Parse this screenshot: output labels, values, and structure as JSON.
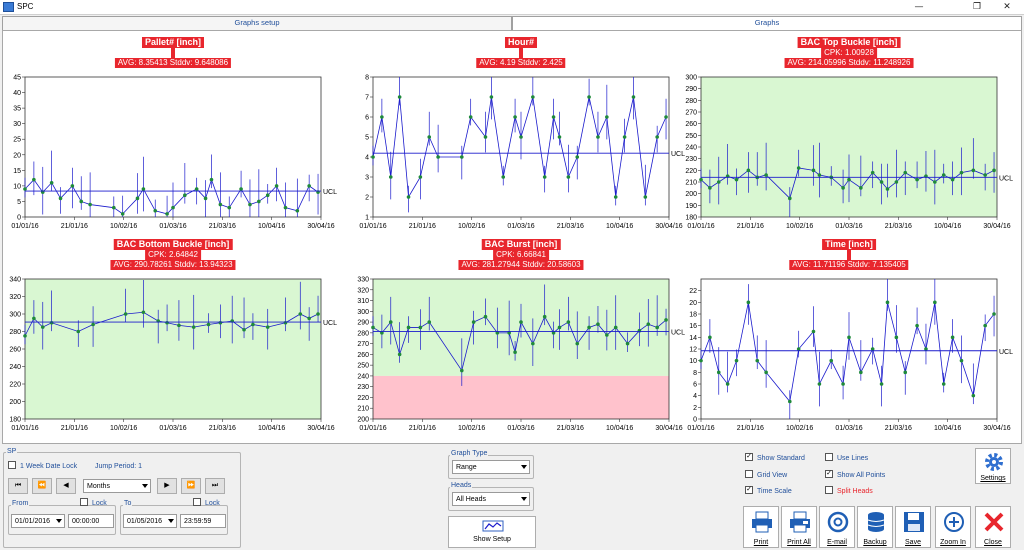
{
  "window": {
    "title": "SPC",
    "minimize": "—",
    "restore": "❐",
    "close": "✕"
  },
  "tabs": [
    {
      "label": "Graphs setup"
    },
    {
      "label": "Graphs"
    }
  ],
  "colors": {
    "title_bg": "#e8262d",
    "series_line": "#1a1acc",
    "point": "#1f8a3a",
    "green_zone": "#d9f7d2",
    "red_zone": "#ffc2cc"
  },
  "charts": [
    {
      "title": "Pallet#  [inch]",
      "cpk": "",
      "stats": "AVG: 8.35413  Stddv: 9.648086"
    },
    {
      "title": "Hour#",
      "cpk": "",
      "stats": "AVG: 4.19  Stddv: 2.425"
    },
    {
      "title": "BAC Top Buckle  [inch]",
      "cpk": "CPK:  1.00928",
      "stats": "AVG: 214.05996  Stddv: 11.248926"
    },
    {
      "title": "BAC Bottom Buckle  [inch]",
      "cpk": "CPK:  2.64842",
      "stats": "AVG: 290.78261  Stddv: 13.94323"
    },
    {
      "title": "BAC Burst  [inch]",
      "cpk": "CPK:  6.66841",
      "stats": "AVG: 281.27944  Stddv: 20.58603"
    },
    {
      "title": "Time  [inch]",
      "cpk": "",
      "stats": "AVG: 11.71196  Stddv: 7.135405"
    }
  ],
  "chart_data": [
    {
      "type": "line",
      "title": "Pallet#  [inch]",
      "x_ticks": [
        "01/01/16",
        "21/01/16",
        "10/02/16",
        "01/03/16",
        "21/03/16",
        "10/04/16",
        "30/04/16"
      ],
      "y_ticks": [
        0,
        5,
        10,
        15,
        20,
        25,
        30,
        35,
        40,
        45
      ],
      "ylim": [
        0,
        45
      ],
      "center_line": 8.35,
      "center_label": "UCL",
      "zones": [],
      "points": [
        [
          0,
          9
        ],
        [
          3,
          12
        ],
        [
          6,
          8
        ],
        [
          9,
          11
        ],
        [
          12,
          6
        ],
        [
          16,
          10
        ],
        [
          19,
          5
        ],
        [
          22,
          4
        ],
        [
          30,
          3
        ],
        [
          33,
          1
        ],
        [
          38,
          6
        ],
        [
          40,
          9
        ],
        [
          44,
          2
        ],
        [
          48,
          1
        ],
        [
          50,
          3
        ],
        [
          54,
          7
        ],
        [
          58,
          9
        ],
        [
          61,
          6
        ],
        [
          63,
          12
        ],
        [
          66,
          4
        ],
        [
          69,
          3
        ],
        [
          73,
          9
        ],
        [
          76,
          4
        ],
        [
          79,
          5
        ],
        [
          82,
          7
        ],
        [
          85,
          10
        ],
        [
          88,
          3
        ],
        [
          92,
          2
        ],
        [
          96,
          10
        ],
        [
          99,
          8
        ]
      ]
    },
    {
      "type": "line",
      "title": "Hour#",
      "x_ticks": [
        "01/01/16",
        "21/01/16",
        "10/02/16",
        "01/03/16",
        "21/03/16",
        "10/04/16",
        "30/04/16"
      ],
      "y_ticks": [
        1,
        2,
        3,
        4,
        5,
        6,
        7,
        8
      ],
      "ylim": [
        1,
        8
      ],
      "center_line": 4.19,
      "center_label": "UCL",
      "zones": [],
      "points": [
        [
          0,
          4
        ],
        [
          3,
          6
        ],
        [
          6,
          3
        ],
        [
          9,
          7
        ],
        [
          12,
          2
        ],
        [
          16,
          3
        ],
        [
          19,
          5
        ],
        [
          22,
          4
        ],
        [
          30,
          4
        ],
        [
          33,
          6
        ],
        [
          38,
          5
        ],
        [
          40,
          7
        ],
        [
          44,
          3
        ],
        [
          48,
          6
        ],
        [
          50,
          5
        ],
        [
          54,
          7
        ],
        [
          58,
          3
        ],
        [
          61,
          6
        ],
        [
          63,
          5
        ],
        [
          66,
          3
        ],
        [
          69,
          4
        ],
        [
          73,
          7
        ],
        [
          76,
          5
        ],
        [
          79,
          6
        ],
        [
          82,
          2
        ],
        [
          85,
          5
        ],
        [
          88,
          7
        ],
        [
          92,
          2
        ],
        [
          96,
          5
        ],
        [
          99,
          6
        ]
      ]
    },
    {
      "type": "line",
      "title": "BAC Top Buckle  [inch]",
      "x_ticks": [
        "01/01/16",
        "21/01/16",
        "10/02/16",
        "01/03/16",
        "21/03/16",
        "10/04/16",
        "30/04/16"
      ],
      "y_ticks": [
        180,
        190,
        200,
        210,
        220,
        230,
        240,
        250,
        260,
        270,
        280,
        290,
        300
      ],
      "ylim": [
        180,
        300
      ],
      "center_line": 214,
      "center_label": "UCL",
      "zones": [
        {
          "from": 180,
          "to": 300,
          "color": "green"
        }
      ],
      "points": [
        [
          0,
          212
        ],
        [
          3,
          205
        ],
        [
          6,
          210
        ],
        [
          9,
          215
        ],
        [
          12,
          212
        ],
        [
          16,
          220
        ],
        [
          19,
          214
        ],
        [
          22,
          216
        ],
        [
          30,
          196
        ],
        [
          33,
          222
        ],
        [
          38,
          220
        ],
        [
          40,
          216
        ],
        [
          44,
          214
        ],
        [
          48,
          205
        ],
        [
          50,
          212
        ],
        [
          54,
          205
        ],
        [
          58,
          218
        ],
        [
          61,
          210
        ],
        [
          63,
          204
        ],
        [
          66,
          210
        ],
        [
          69,
          218
        ],
        [
          73,
          212
        ],
        [
          76,
          215
        ],
        [
          79,
          210
        ],
        [
          82,
          216
        ],
        [
          85,
          212
        ],
        [
          88,
          218
        ],
        [
          92,
          220
        ],
        [
          96,
          216
        ],
        [
          99,
          220
        ]
      ]
    },
    {
      "type": "line",
      "title": "BAC Bottom Buckle  [inch]",
      "x_ticks": [
        "01/01/16",
        "21/01/16",
        "10/02/16",
        "01/03/16",
        "21/03/16",
        "10/04/16",
        "30/04/16"
      ],
      "y_ticks": [
        180,
        200,
        220,
        240,
        260,
        280,
        300,
        320,
        340
      ],
      "ylim": [
        180,
        340
      ],
      "center_line": 290.8,
      "center_label": "UCL",
      "zones": [
        {
          "from": 180,
          "to": 340,
          "color": "green"
        }
      ],
      "points": [
        [
          0,
          275
        ],
        [
          3,
          295
        ],
        [
          6,
          285
        ],
        [
          9,
          290
        ],
        [
          18,
          280
        ],
        [
          23,
          288
        ],
        [
          34,
          300
        ],
        [
          40,
          302
        ],
        [
          45,
          292
        ],
        [
          48,
          290
        ],
        [
          52,
          287
        ],
        [
          57,
          285
        ],
        [
          62,
          288
        ],
        [
          66,
          290
        ],
        [
          70,
          292
        ],
        [
          74,
          282
        ],
        [
          77,
          288
        ],
        [
          82,
          285
        ],
        [
          88,
          290
        ],
        [
          93,
          300
        ],
        [
          96,
          295
        ],
        [
          99,
          300
        ]
      ]
    },
    {
      "type": "line",
      "title": "BAC Burst  [inch]",
      "x_ticks": [
        "01/01/16",
        "21/01/16",
        "10/02/16",
        "01/03/16",
        "21/03/16",
        "10/04/16",
        "30/04/16"
      ],
      "y_ticks": [
        200,
        210,
        220,
        230,
        240,
        250,
        260,
        270,
        280,
        290,
        300,
        310,
        320,
        330
      ],
      "ylim": [
        200,
        330
      ],
      "center_line": 281.3,
      "center_label": "UCL",
      "zones": [
        {
          "from": 240,
          "to": 330,
          "color": "green"
        },
        {
          "from": 200,
          "to": 240,
          "color": "red"
        }
      ],
      "points": [
        [
          0,
          285
        ],
        [
          3,
          280
        ],
        [
          6,
          290
        ],
        [
          9,
          260
        ],
        [
          12,
          285
        ],
        [
          16,
          285
        ],
        [
          19,
          290
        ],
        [
          30,
          245
        ],
        [
          34,
          290
        ],
        [
          38,
          295
        ],
        [
          42,
          280
        ],
        [
          46,
          280
        ],
        [
          48,
          262
        ],
        [
          50,
          290
        ],
        [
          54,
          270
        ],
        [
          58,
          295
        ],
        [
          61,
          280
        ],
        [
          63,
          285
        ],
        [
          66,
          290
        ],
        [
          69,
          270
        ],
        [
          73,
          285
        ],
        [
          76,
          288
        ],
        [
          79,
          278
        ],
        [
          82,
          285
        ],
        [
          86,
          270
        ],
        [
          90,
          282
        ],
        [
          93,
          288
        ],
        [
          96,
          285
        ],
        [
          99,
          292
        ]
      ]
    },
    {
      "type": "line",
      "title": "Time  [inch]",
      "x_ticks": [
        "01/01/16",
        "21/01/16",
        "10/02/16",
        "01/03/16",
        "21/03/16",
        "10/04/16",
        "30/04/16"
      ],
      "y_ticks": [
        0,
        2,
        4,
        6,
        8,
        10,
        12,
        14,
        16,
        18,
        20,
        22
      ],
      "ylim": [
        0,
        24
      ],
      "center_line": 11.7,
      "center_label": "UCL",
      "zones": [],
      "points": [
        [
          0,
          10
        ],
        [
          3,
          14
        ],
        [
          6,
          8
        ],
        [
          9,
          6
        ],
        [
          12,
          10
        ],
        [
          16,
          20
        ],
        [
          19,
          10
        ],
        [
          22,
          8
        ],
        [
          30,
          3
        ],
        [
          33,
          12
        ],
        [
          38,
          15
        ],
        [
          40,
          6
        ],
        [
          44,
          10
        ],
        [
          48,
          6
        ],
        [
          50,
          14
        ],
        [
          54,
          8
        ],
        [
          58,
          12
        ],
        [
          61,
          6
        ],
        [
          63,
          20
        ],
        [
          66,
          14
        ],
        [
          69,
          8
        ],
        [
          73,
          16
        ],
        [
          76,
          12
        ],
        [
          79,
          20
        ],
        [
          82,
          6
        ],
        [
          85,
          14
        ],
        [
          88,
          10
        ],
        [
          92,
          4
        ],
        [
          96,
          16
        ],
        [
          99,
          18
        ]
      ]
    }
  ],
  "bottom": {
    "sp_group": "SP",
    "week_lock": "1 Week Date Lock",
    "jump_period": "Jump Period: 1",
    "nav": {
      "first": "⏮",
      "prev2": "⏪",
      "prev": "◀",
      "period": "Months",
      "next": "▶",
      "next2": "⏩",
      "last": "⏭"
    },
    "from": {
      "label": "From",
      "lock": "Lock",
      "date": "01/01/2016",
      "time": "00:00:00"
    },
    "to": {
      "label": "To",
      "lock": "Lock",
      "date": "01/05/2016",
      "time": "23:59:59"
    },
    "graph_type": {
      "label": "Graph Type",
      "value": "Range"
    },
    "heads": {
      "label": "Heads",
      "value": "All Heads"
    },
    "show_setup": "Show Setup",
    "options": [
      {
        "label": "Show Standard",
        "checked": true,
        "color": "blue"
      },
      {
        "label": "Use Lines",
        "checked": false,
        "color": "blue"
      },
      {
        "label": "Grid View",
        "checked": false,
        "color": "blue"
      },
      {
        "label": "Show All Points",
        "checked": true,
        "color": "blue"
      },
      {
        "label": "Time Scale",
        "checked": true,
        "color": "blue"
      },
      {
        "label": "Split Heads",
        "checked": false,
        "color": "red"
      }
    ],
    "settings": "Settings",
    "toolbar": [
      {
        "label": "Print",
        "icon": "printer-icon"
      },
      {
        "label": "Print All",
        "icon": "printer-all-icon"
      },
      {
        "label": "E-mail",
        "icon": "email-icon"
      },
      {
        "label": "Backup",
        "icon": "database-icon"
      },
      {
        "label": "Save",
        "icon": "save-icon"
      },
      {
        "label": "Zoom In",
        "icon": "zoom-in-icon"
      },
      {
        "label": "Close",
        "icon": "close-icon"
      }
    ]
  }
}
